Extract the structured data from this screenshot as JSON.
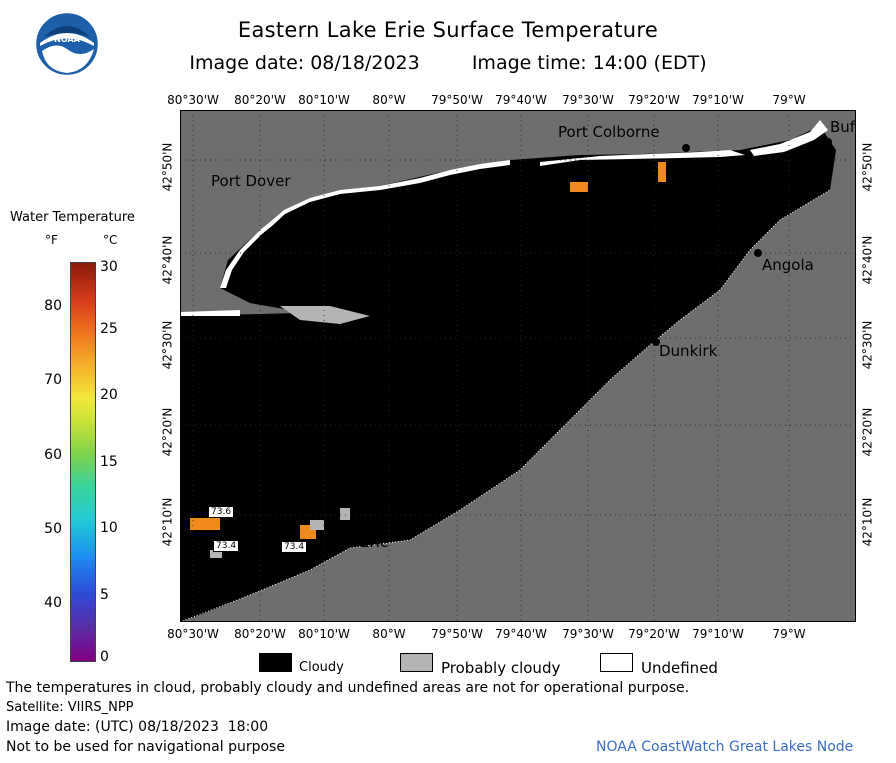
{
  "header": {
    "title": "Eastern Lake Erie Surface Temperature",
    "image_date": "Image date: 08/18/2023",
    "image_time": "Image time: 14:00 (EDT)"
  },
  "logo": {
    "text": "NOAA",
    "icon": "noaa-logo"
  },
  "legend": {
    "title": "Water Temperature",
    "unit_f": "°F",
    "unit_c": "°C",
    "ticks_f": [
      "80",
      "70",
      "60",
      "50",
      "40"
    ],
    "ticks_c": [
      "30",
      "25",
      "20",
      "15",
      "10",
      "5",
      "0"
    ]
  },
  "map": {
    "lon_labels_top": [
      "80°30'W",
      "80°20'W",
      "80°10'W",
      "80°W",
      "79°50'W",
      "79°40'W",
      "79°30'W",
      "79°20'W",
      "79°10'W",
      "79°W"
    ],
    "lon_labels_bottom": [
      "80°30'W",
      "80°20'W",
      "80°10'W",
      "80°W",
      "79°50'W",
      "79°40'W",
      "79°30'W",
      "79°20'W",
      "79°10'W",
      "79°W"
    ],
    "lat_labels": [
      "42°50'N",
      "42°40'N",
      "42°30'N",
      "42°20'N",
      "42°10'N"
    ],
    "cities": {
      "port_colborne": "Port Colborne",
      "buffalo": "Buf",
      "port_dover": "Port Dover",
      "angola": "Angola",
      "dunkirk": "Dunkirk",
      "erie": "Erie"
    },
    "data_labels": [
      "73.6",
      "73.4",
      "73.4"
    ],
    "colors": {
      "cloudy": "#000000",
      "land": "#6e6e6e",
      "probably_cloudy": "#b4b4b4",
      "undefined": "#ffffff",
      "warm_water": "#f08a1e"
    }
  },
  "key": {
    "cloudy": "Cloudy",
    "probably_cloudy": "Probably cloudy",
    "undefined": "Undefined"
  },
  "footer": {
    "disclaimer": "The temperatures in cloud, probably cloudy and undefined areas are not for operational purpose.",
    "satellite": "Satellite: VIIRS_NPP",
    "utc_date": "Image date: (UTC) 08/18/2023  18:00",
    "nav_warning": "Not to be used for navigational purpose",
    "credit": "NOAA CoastWatch Great Lakes Node"
  }
}
